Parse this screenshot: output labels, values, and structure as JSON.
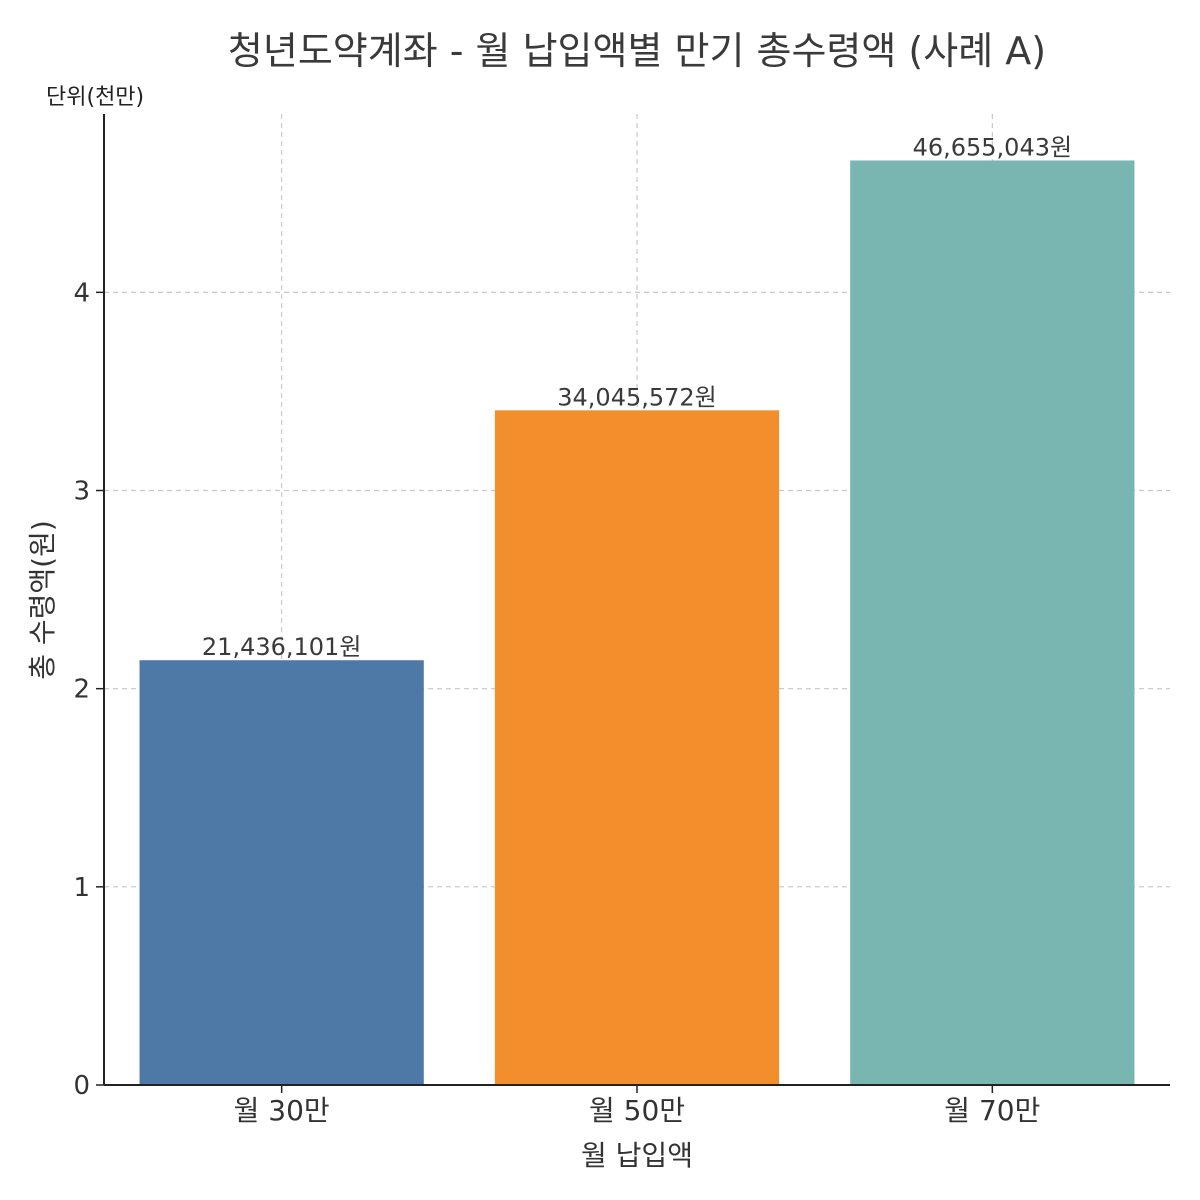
{
  "chart_data": {
    "type": "bar",
    "title": "청년도약계좌 - 월 납입액별 만기 총수령액 (사례 A)",
    "unit_note": "단위(천만)",
    "xlabel": "월 납입액",
    "ylabel": "총 수령액(원)",
    "categories": [
      "월 30만",
      "월 50만",
      "월 70만"
    ],
    "values": [
      2.1436101,
      3.4045572,
      4.6655043
    ],
    "data_labels": [
      "21,436,101원",
      "34,045,572원",
      "46,655,043원"
    ],
    "colors": [
      "#4e79a7",
      "#f28e2b",
      "#79b6b1"
    ],
    "yticks": [
      0,
      1,
      2,
      3,
      4
    ],
    "ylim": [
      0,
      4.9
    ],
    "grid": true
  }
}
